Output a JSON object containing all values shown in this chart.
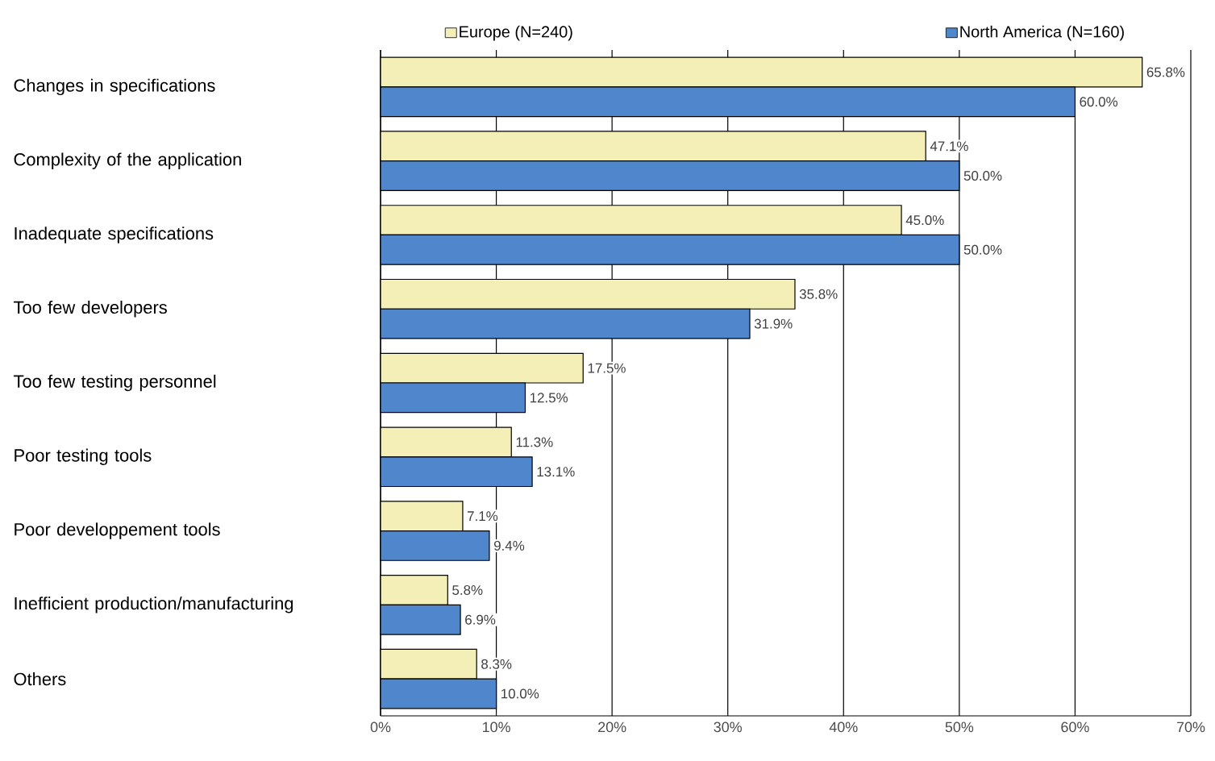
{
  "chart_data": {
    "type": "bar",
    "orientation": "horizontal",
    "categories": [
      "Changes in specifications",
      "Complexity of the application",
      "Inadequate specifications",
      "Too few developers",
      "Too few testing personnel",
      "Poor testing tools",
      "Poor developpement tools",
      "Inefficient production/manufacturing",
      "Others"
    ],
    "series": [
      {
        "name": "Europe (N=240)",
        "color": "#f3efb6",
        "values": [
          65.8,
          47.1,
          45.0,
          35.8,
          17.5,
          11.3,
          7.1,
          5.8,
          8.3
        ],
        "value_labels": [
          "65.8%",
          "47.1%",
          "45.0%",
          "35.8%",
          "17.5%",
          "11.3%",
          "7.1%",
          "5.8%",
          "8.3%"
        ]
      },
      {
        "name": "North America (N=160)",
        "color": "#4f86cc",
        "values": [
          60.0,
          50.0,
          50.0,
          31.9,
          12.5,
          13.1,
          9.4,
          6.9,
          10.0
        ],
        "value_labels": [
          "60.0%",
          "50.0%",
          "50.0%",
          "31.9%",
          "12.5%",
          "13.1%",
          "9.4%",
          "6.9%",
          "10.0%"
        ]
      }
    ],
    "xlim": [
      0,
      70
    ],
    "xticks": [
      {
        "value": 0,
        "label": "0%"
      },
      {
        "value": 10,
        "label": "10%"
      },
      {
        "value": 20,
        "label": "20%"
      },
      {
        "value": 30,
        "label": "30%"
      },
      {
        "value": 40,
        "label": "40%"
      },
      {
        "value": 50,
        "label": "50%"
      },
      {
        "value": 60,
        "label": "60%"
      },
      {
        "value": 70,
        "label": "70%"
      }
    ],
    "grid": "x",
    "legend": "top"
  }
}
